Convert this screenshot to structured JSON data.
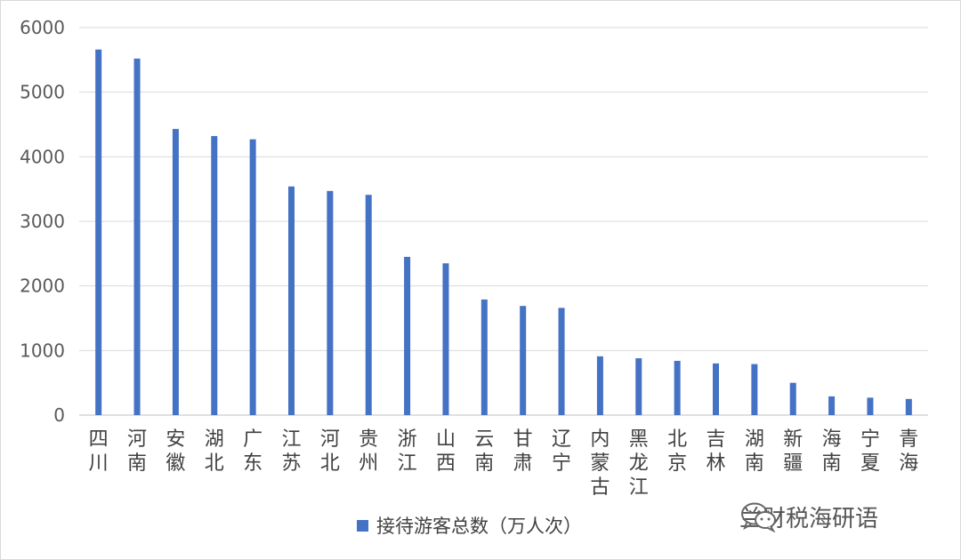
{
  "chart_data": {
    "type": "bar",
    "categories": [
      "四川",
      "河南",
      "安徽",
      "湖北",
      "广东",
      "江苏",
      "河北",
      "贵州",
      "浙江",
      "山西",
      "云南",
      "甘肃",
      "辽宁",
      "内蒙古",
      "黑龙江",
      "北京",
      "吉林",
      "湖南",
      "新疆",
      "海南",
      "宁夏",
      "青海"
    ],
    "series": [
      {
        "name": "接待游客总数（万人次）",
        "color": "#4472c4",
        "values": [
          5660,
          5520,
          4430,
          4320,
          4270,
          3540,
          3470,
          3410,
          2450,
          2350,
          1790,
          1690,
          1660,
          910,
          880,
          840,
          800,
          790,
          500,
          290,
          270,
          250
        ]
      }
    ],
    "y_ticks": [
      "0",
      "1000",
      "2000",
      "3000",
      "4000",
      "5000",
      "6000"
    ],
    "ylim": [
      0,
      6000
    ],
    "grid": true,
    "legend_position": "bottom"
  },
  "watermark": {
    "text": "兰财税海研语",
    "icon": "wechat-icon"
  }
}
